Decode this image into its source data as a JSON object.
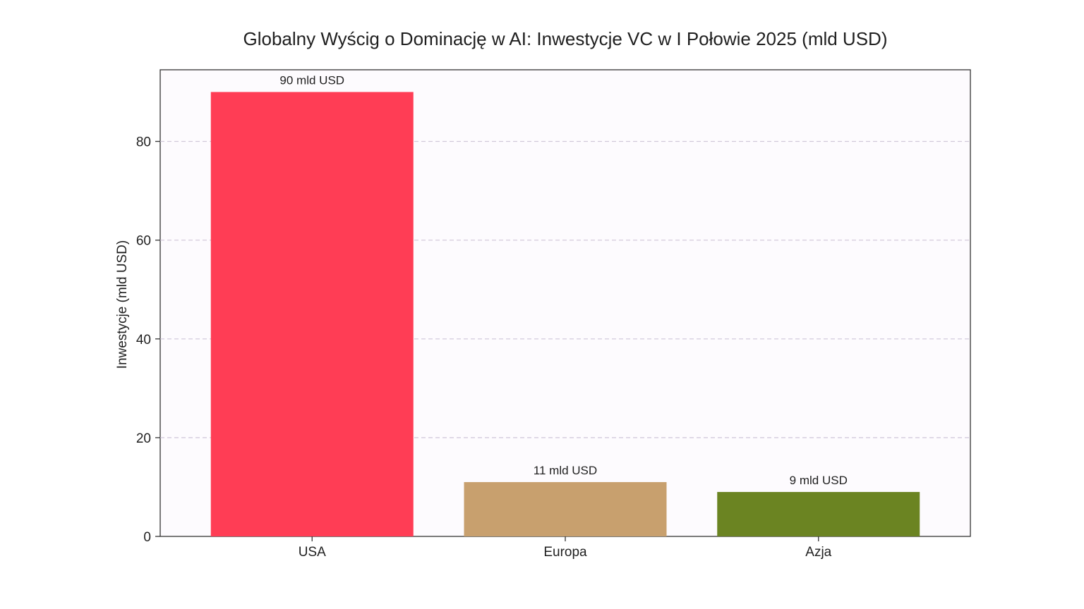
{
  "chart_data": {
    "type": "bar",
    "title": "Globalny Wyścig o Dominację w AI: Inwestycje VC w I Połowie 2025 (mld USD)",
    "xlabel": "",
    "ylabel": "Inwestycje (mld USD)",
    "categories": [
      "USA",
      "Europa",
      "Azja"
    ],
    "values": [
      90,
      11,
      9
    ],
    "data_labels": [
      "90 mld USD",
      "11 mld USD",
      "9 mld USD"
    ],
    "colors": [
      "#ff3d55",
      "#c8a06e",
      "#6b8422"
    ],
    "ylim": [
      0,
      94.5
    ],
    "yticks": [
      0,
      20,
      40,
      60,
      80
    ],
    "grid": true,
    "grid_axis": "y",
    "legend": "none"
  }
}
